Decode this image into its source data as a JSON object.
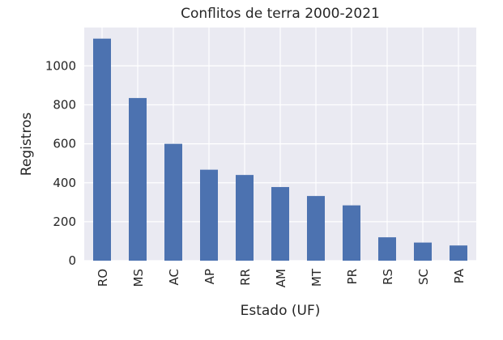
{
  "chart_data": {
    "type": "bar",
    "title": "Conflitos de terra 2000-2021",
    "xlabel": "Estado (UF)",
    "ylabel": "Registros",
    "categories": [
      "RO",
      "MS",
      "AC",
      "AP",
      "RR",
      "AM",
      "MT",
      "PR",
      "RS",
      "SC",
      "PA"
    ],
    "values": [
      1140,
      835,
      600,
      467,
      440,
      378,
      332,
      284,
      120,
      93,
      78
    ],
    "ylim": [
      0,
      1197
    ],
    "yticks": [
      0,
      200,
      400,
      600,
      800,
      1000
    ],
    "grid": true,
    "bar_color": "#4c72b0",
    "plot_background": "#eaeaf2",
    "grid_color": "#ffffff"
  }
}
